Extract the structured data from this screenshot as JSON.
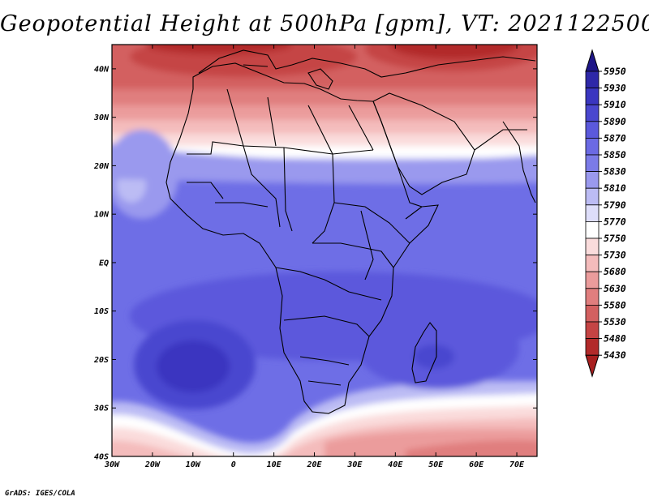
{
  "title": "Geopotential Height at 500hPa [gpm], VT: 2021122500",
  "credit": "GrADS: IGES/COLA",
  "map": {
    "lon_range": [
      -30,
      75
    ],
    "lat_range": [
      -40,
      45
    ],
    "lat_labels": [
      "40N",
      "30N",
      "20N",
      "10N",
      "EQ",
      "10S",
      "20S",
      "30S",
      "40S"
    ],
    "lat_values": [
      40,
      30,
      20,
      10,
      0,
      -10,
      -20,
      -30,
      -40
    ],
    "lon_labels": [
      "30W",
      "20W",
      "10W",
      "0",
      "10E",
      "20E",
      "30E",
      "40E",
      "50E",
      "60E",
      "70E"
    ],
    "lon_values": [
      -30,
      -20,
      -10,
      0,
      10,
      20,
      30,
      40,
      50,
      60,
      70
    ]
  },
  "colorbar": {
    "levels": [
      "5950",
      "5930",
      "5910",
      "5890",
      "5870",
      "5850",
      "5830",
      "5810",
      "5790",
      "5770",
      "5750",
      "5730",
      "5680",
      "5630",
      "5580",
      "5530",
      "5480",
      "5430"
    ],
    "colors": [
      "#1e1687",
      "#2e28a8",
      "#3a36c0",
      "#4a47cf",
      "#5b59dc",
      "#6b6ae4",
      "#7b7be8",
      "#9a99ee",
      "#bcbcf4",
      "#dedefa",
      "#ffffff",
      "#fadcdc",
      "#f4bcbc",
      "#eb9c9c",
      "#e07e7e",
      "#d36060",
      "#c54444",
      "#b22a2a",
      "#a81f1f"
    ]
  }
}
